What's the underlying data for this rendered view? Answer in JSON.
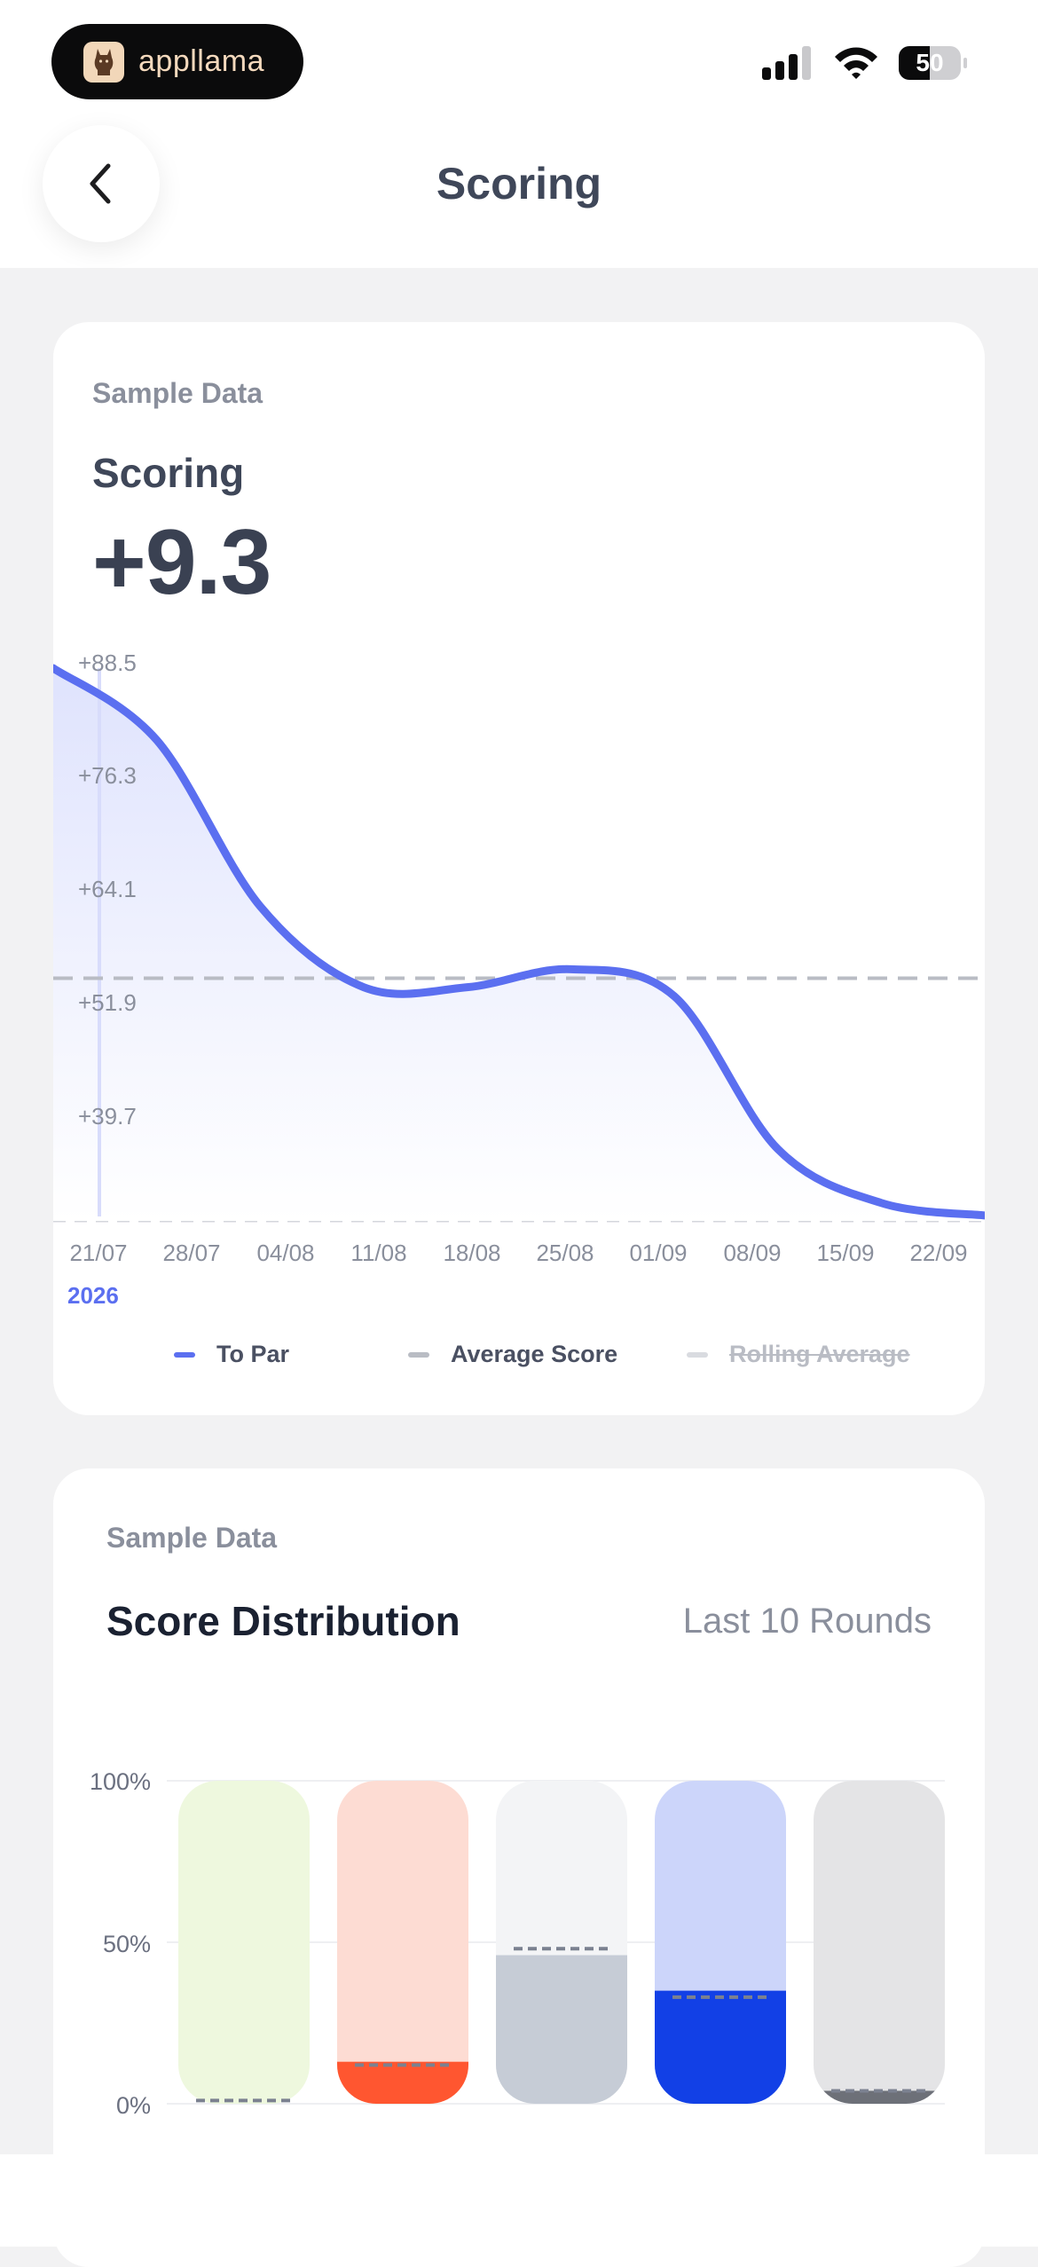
{
  "status_bar": {
    "app_name": "appllama",
    "battery_level": "50",
    "signal_icon": "cellular-signal-icon",
    "wifi_icon": "wifi-icon"
  },
  "header": {
    "back_icon": "chevron-left-icon",
    "title": "Scoring"
  },
  "scoring_card": {
    "sample_label": "Sample Data",
    "title": "Scoring",
    "value": "+9.3",
    "year_label": "2026",
    "legend": [
      {
        "label": "To Par",
        "color": "#5b6ff0"
      },
      {
        "label": "Average Score",
        "color": "#b9bcc4"
      },
      {
        "label": "Rolling Average",
        "color": "#d9dbe0"
      }
    ]
  },
  "distribution_card": {
    "sample_label": "Sample Data",
    "title": "Score Distribution",
    "range_label": "Last 10 Rounds"
  },
  "chart_data": [
    {
      "type": "area",
      "title": "Scoring",
      "categories": [
        "21/07",
        "28/07",
        "04/08",
        "11/08",
        "18/08",
        "25/08",
        "01/09",
        "08/09",
        "15/09",
        "22/09"
      ],
      "y_ticks": [
        "+88.5",
        "+76.3",
        "+64.1",
        "+51.9",
        "+39.7"
      ],
      "series": [
        {
          "name": "To Par",
          "values": [
            88.5,
            80.5,
            62,
            53,
            53,
            55,
            52,
            35,
            29,
            27.6
          ]
        }
      ],
      "average_score": 54,
      "ylim": [
        27,
        89
      ],
      "colors": {
        "line": "#5b6ff0",
        "fill": "#e6e9fd"
      }
    },
    {
      "type": "bar",
      "title": "Score Distribution",
      "y_ticks": [
        "100%",
        "50%",
        "0%"
      ],
      "ylim": [
        0,
        100
      ],
      "series": [
        {
          "values": [
            0,
            13,
            46,
            35,
            4
          ],
          "averages": [
            1,
            12,
            48,
            33,
            4
          ]
        }
      ],
      "colors": {
        "track": [
          "#eef8de",
          "#fddcd3",
          "#f3f4f6",
          "#ccd5fa",
          "#e4e4e6"
        ],
        "fill": [
          "#c8e6a3",
          "#ff5630",
          "#c6ccd6",
          "#1240e6",
          "#6d7078"
        ]
      }
    }
  ]
}
